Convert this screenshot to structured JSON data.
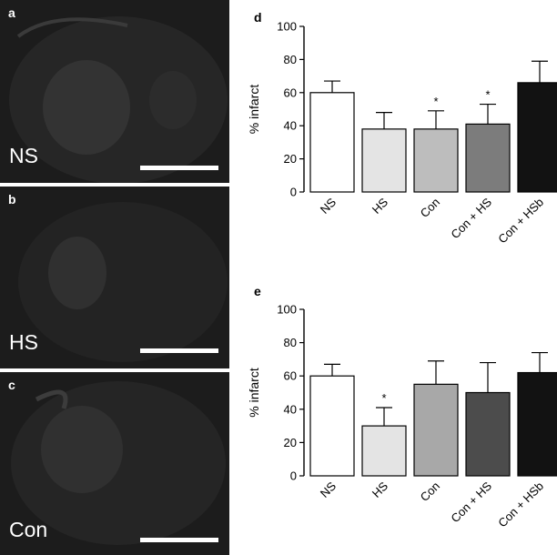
{
  "panels": [
    {
      "letter": "a",
      "label": "NS"
    },
    {
      "letter": "b",
      "label": "HS"
    },
    {
      "letter": "c",
      "label": "Con"
    }
  ],
  "chart_data": [
    {
      "panel_letter": "d",
      "type": "bar",
      "ylabel": "% infarct",
      "ylim": [
        0,
        100
      ],
      "yticks": [
        0,
        20,
        40,
        60,
        80,
        100
      ],
      "categories": [
        "NS",
        "HS",
        "Con",
        "Con + HS",
        "Con + HSb"
      ],
      "values": [
        60,
        38,
        38,
        41,
        66
      ],
      "errors": [
        7,
        10,
        11,
        12,
        13
      ],
      "significance": [
        "",
        "",
        "*",
        "*",
        ""
      ],
      "colors": [
        "#ffffff",
        "#e4e4e4",
        "#bdbdbd",
        "#7c7c7c",
        "#121212"
      ]
    },
    {
      "panel_letter": "e",
      "type": "bar",
      "ylabel": "% infarct",
      "ylim": [
        0,
        100
      ],
      "yticks": [
        0,
        20,
        40,
        60,
        80,
        100
      ],
      "categories": [
        "NS",
        "HS",
        "Con",
        "Con + HS",
        "Con + HSb"
      ],
      "values": [
        60,
        30,
        55,
        50,
        62
      ],
      "errors": [
        7,
        11,
        14,
        18,
        12
      ],
      "significance": [
        "",
        "*",
        "",
        "",
        ""
      ],
      "colors": [
        "#ffffff",
        "#e4e4e4",
        "#a8a8a8",
        "#4c4c4c",
        "#121212"
      ]
    }
  ]
}
